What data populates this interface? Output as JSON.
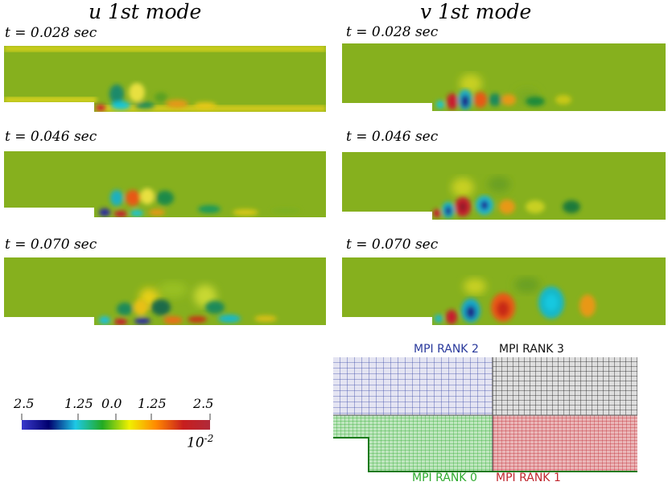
{
  "titles": {
    "u": "u 1st mode",
    "v": "v 1st mode"
  },
  "times": [
    "t = 0.028 sec",
    "t = 0.046 sec",
    "t = 0.070 sec"
  ],
  "colorbar": {
    "ticks": [
      "2.5",
      "1.25",
      "0.0",
      "1.25",
      "2.5"
    ],
    "scale_base": "10",
    "scale_exp": "-2",
    "colors": [
      "#3a3acc",
      "#00006e",
      "#1ec8e6",
      "#22aa22",
      "#f0f000",
      "#ff8800",
      "#c81e1e",
      "#b02a3a"
    ]
  },
  "mpi": {
    "rank2": "MPI RANK 2",
    "rank3": "MPI RANK 3",
    "rank0": "MPI RANK 0",
    "rank1": "MPI RANK 1",
    "colors": {
      "rank0": "#2eaa2e",
      "rank1": "#c0262e",
      "rank2": "#2a3a9c",
      "rank3": "#111111"
    }
  }
}
